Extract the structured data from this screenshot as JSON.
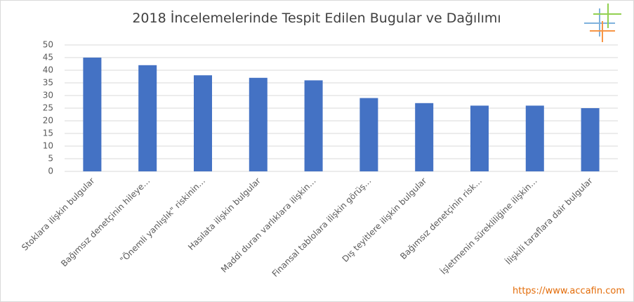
{
  "chart_data": {
    "type": "bar",
    "title": "2018 İncelemelerinde Tespit Edilen Bugular ve Dağılımı",
    "categories": [
      "Stoklara ilişkin bulgular",
      "Bağımsız denetçinin hileye…",
      "\"Önemli yanlışlık\" riskinin…",
      "Hasılata ilişkin bulgular",
      "Maddi duran varlıklara ilişkin…",
      "Finansal tablolara ilişkin görüş…",
      "Dış teyitlere ilişkin bulgular",
      "Bağımsız denetçinin risk…",
      "İşletmenin sürekliliğine ilişkin…",
      "İlişkili taraflara dair bulgular"
    ],
    "values": [
      45,
      42,
      38,
      37,
      36,
      29,
      27,
      26,
      26,
      25
    ],
    "color": "#4472c4",
    "ylim": [
      0,
      50
    ],
    "yticks": [
      0,
      5,
      10,
      15,
      20,
      25,
      30,
      35,
      40,
      45,
      50
    ],
    "grid": true,
    "source": "https://www.accafin.com"
  }
}
